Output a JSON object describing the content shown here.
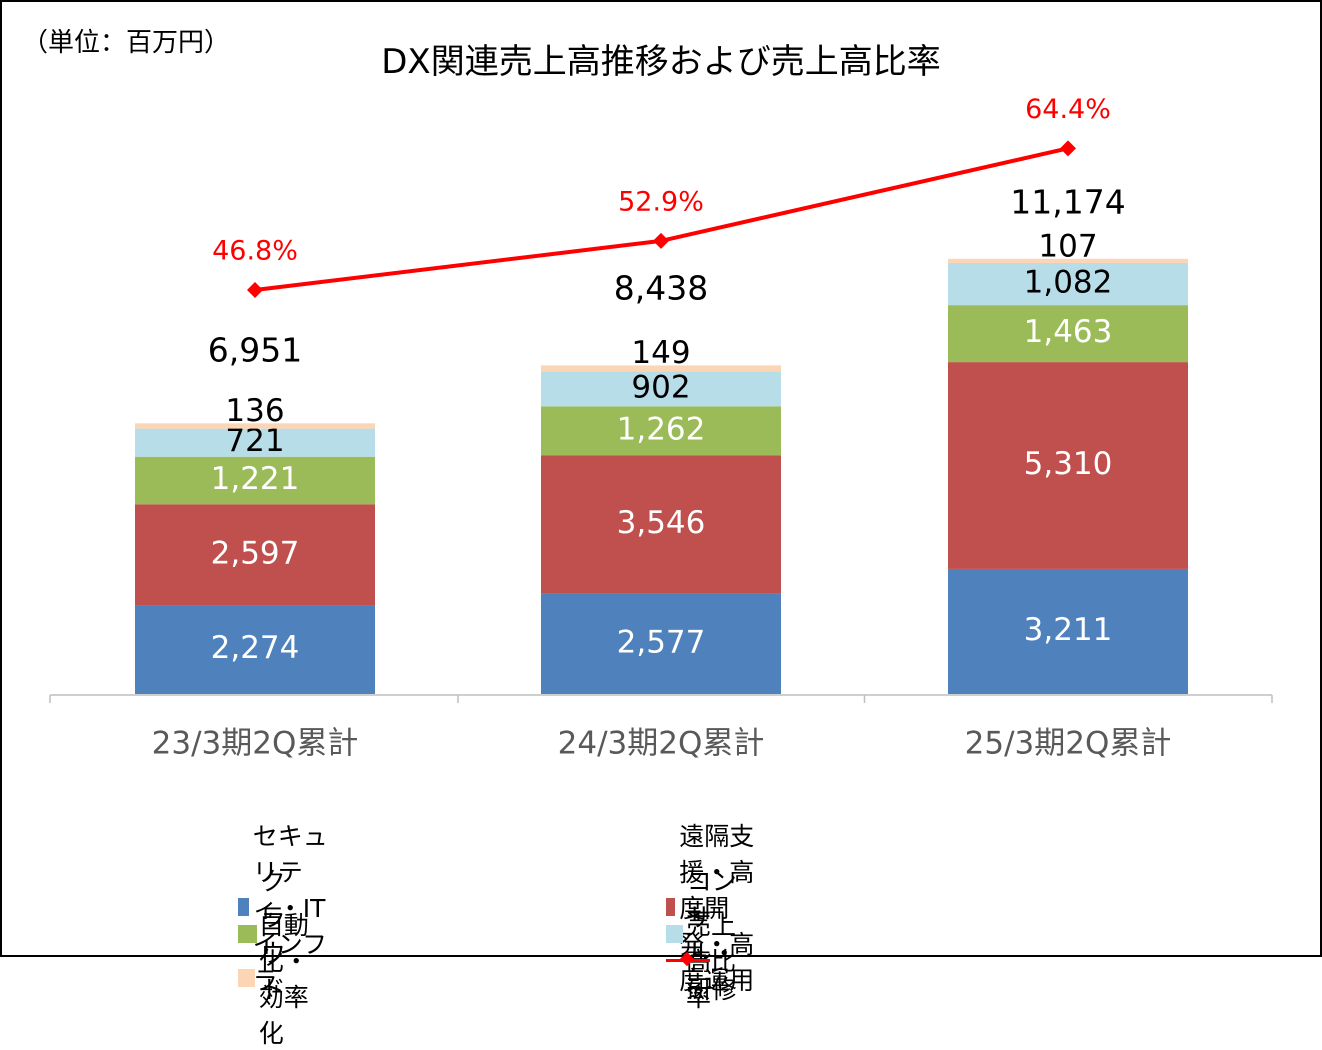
{
  "unit_label": "（単位：百万円）",
  "chart_data": {
    "type": "bar",
    "title": "DX関連売上高推移および売上高比率",
    "categories": [
      "23/3期2Q累計",
      "24/3期2Q累計",
      "25/3期2Q累計"
    ],
    "series": [
      {
        "name": "セキュリティ・ITインフラ",
        "values": [
          2274,
          2577,
          3211
        ],
        "labels": [
          "2,274",
          "2,577",
          "3,211"
        ],
        "color": "#4F81BD"
      },
      {
        "name": "遠隔支援・高度開発・高度運用",
        "values": [
          2597,
          3546,
          5310
        ],
        "labels": [
          "2,597",
          "3,546",
          "5,310"
        ],
        "color": "#C0504D"
      },
      {
        "name": "クラウド",
        "values": [
          1221,
          1262,
          1463
        ],
        "labels": [
          "1,221",
          "1,262",
          "1,463"
        ],
        "color": "#9BBB59"
      },
      {
        "name": "コンサル・研修",
        "values": [
          721,
          902,
          1082
        ],
        "labels": [
          "721",
          "902",
          "1,082"
        ],
        "color": "#B7DDE8"
      },
      {
        "name": "自動化・効率化",
        "values": [
          136,
          149,
          107
        ],
        "labels": [
          "136",
          "149",
          "107"
        ],
        "color": "#FCD5B5"
      }
    ],
    "totals": [
      6951,
      8438,
      11174
    ],
    "total_labels": [
      "6,951",
      "8,438",
      "11,174"
    ],
    "line_series": {
      "name": "売上高比率",
      "values": [
        46.8,
        52.9,
        64.4
      ],
      "labels": [
        "46.8%",
        "52.9%",
        "64.4%"
      ],
      "color": "#FF0000"
    },
    "legend_position": "bottom",
    "grid": false
  }
}
